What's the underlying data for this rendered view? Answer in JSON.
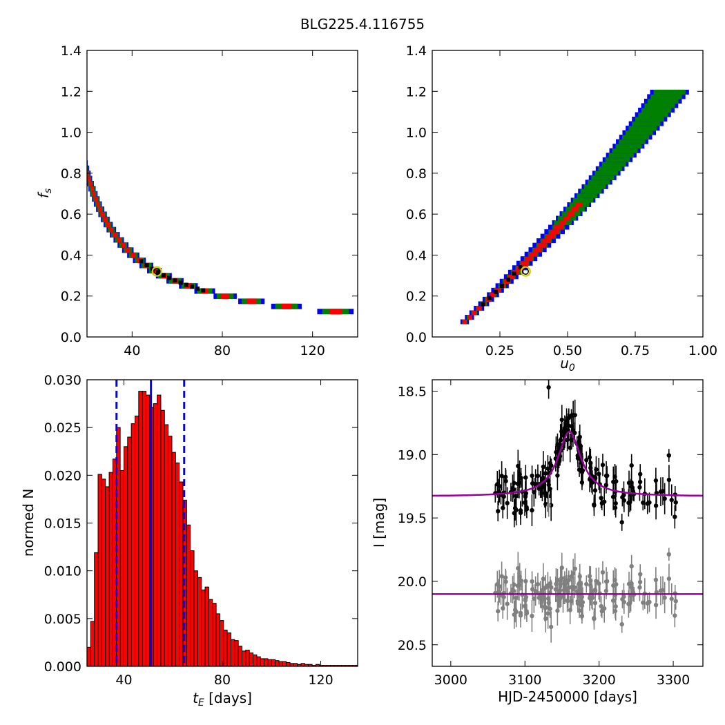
{
  "figure": {
    "title": "BLG225.4.116755"
  },
  "chart_data": [
    {
      "id": "tE-fs",
      "type": "heatmap",
      "xlabel": "",
      "ylabel": "f_s",
      "xlim": [
        20,
        140
      ],
      "ylim": [
        0,
        1.4
      ],
      "xticks": [
        40,
        80,
        120
      ],
      "xtick_labels": [
        "40",
        "80",
        "120"
      ],
      "yticks": [
        0,
        0.2,
        0.4,
        0.6,
        0.8,
        1.0,
        1.2,
        1.4
      ],
      "ytick_labels": [
        "0.0",
        "0.2",
        "0.4",
        "0.6",
        "0.8",
        "1.0",
        "1.2",
        "1.4"
      ],
      "best_fit": {
        "x": 51,
        "y": 0.32
      },
      "confidence_colors": {
        "outer": "#0000ff",
        "middle": "#008000",
        "inner": "#ff0000",
        "best": "#000000"
      }
    },
    {
      "id": "u0-fs",
      "type": "heatmap",
      "xlabel": "u_0",
      "ylabel": "",
      "xlim": [
        0,
        1.0
      ],
      "ylim": [
        0,
        1.4
      ],
      "xticks": [
        0.25,
        0.5,
        0.75,
        1.0
      ],
      "xtick_labels": [
        "0.25",
        "0.50",
        "0.75",
        "1.00"
      ],
      "yticks": [
        0,
        0.2,
        0.4,
        0.6,
        0.8,
        1.0,
        1.2,
        1.4
      ],
      "ytick_labels": [
        "0.0",
        "0.2",
        "0.4",
        "0.6",
        "0.8",
        "1.0",
        "1.2",
        "1.4"
      ],
      "best_fit": {
        "x": 0.345,
        "y": 0.32
      }
    },
    {
      "id": "tE-hist",
      "type": "bar",
      "xlabel": "t_E [days]",
      "ylabel": "normed N",
      "xlim": [
        25,
        135
      ],
      "ylim": [
        0,
        0.03
      ],
      "xticks": [
        40,
        80,
        120
      ],
      "xtick_labels": [
        "40",
        "80",
        "120"
      ],
      "yticks": [
        0,
        0.005,
        0.01,
        0.015,
        0.02,
        0.025,
        0.03
      ],
      "ytick_labels": [
        "0.000",
        "0.005",
        "0.010",
        "0.015",
        "0.020",
        "0.025",
        "0.030"
      ],
      "bin_width": 1.5,
      "bins_start": 25,
      "values": [
        0.002,
        0.0047,
        0.0119,
        0.0201,
        0.0196,
        0.0188,
        0.0203,
        0.0217,
        0.025,
        0.0205,
        0.023,
        0.024,
        0.0254,
        0.0262,
        0.0288,
        0.0288,
        0.0284,
        0.0271,
        0.0275,
        0.0284,
        0.0268,
        0.0253,
        0.0241,
        0.0224,
        0.0213,
        0.0193,
        0.0174,
        0.0148,
        0.0121,
        0.01,
        0.0093,
        0.008,
        0.0083,
        0.007,
        0.0066,
        0.0055,
        0.0048,
        0.0038,
        0.0035,
        0.0028,
        0.0027,
        0.0021,
        0.0016,
        0.0017,
        0.0014,
        0.0012,
        0.001,
        0.0008,
        0.0008,
        0.0007,
        0.0007,
        0.0006,
        0.0005,
        0.0005,
        0.0004,
        0.0003,
        0.0003,
        0.0002,
        0.0003,
        0.0002,
        0.0002,
        0.0001,
        0.0002,
        0.0001,
        0.0001,
        0.0001,
        0.0001,
        0.0001,
        0.0001,
        0.0001,
        0.0001,
        0.0001,
        0.0001,
        0.0001
      ],
      "median": 51,
      "interval": [
        37,
        64.5
      ],
      "bar_color": "#ff0000",
      "line_color": "#0000ff"
    },
    {
      "id": "lightcurve",
      "type": "scatter",
      "xlabel": "HJD-2450000 [days]",
      "ylabel": "I [mag]",
      "xlim": [
        2975,
        3340
      ],
      "ylim": [
        20.67,
        18.41
      ],
      "xticks": [
        3000,
        3100,
        3200,
        3300
      ],
      "xtick_labels": [
        "3000",
        "3100",
        "3200",
        "3300"
      ],
      "yticks": [
        18.5,
        19.0,
        19.5,
        20.0,
        20.5
      ],
      "ytick_labels": [
        "18.5",
        "19.0",
        "19.5",
        "20.0",
        "20.5"
      ],
      "model": {
        "t0": 3160,
        "peak": 18.82,
        "base": 19.33,
        "width": 19,
        "color": "#990099"
      },
      "residual_baseline": 20.1,
      "data_color": "#000000",
      "residual_color": "#808080"
    }
  ]
}
